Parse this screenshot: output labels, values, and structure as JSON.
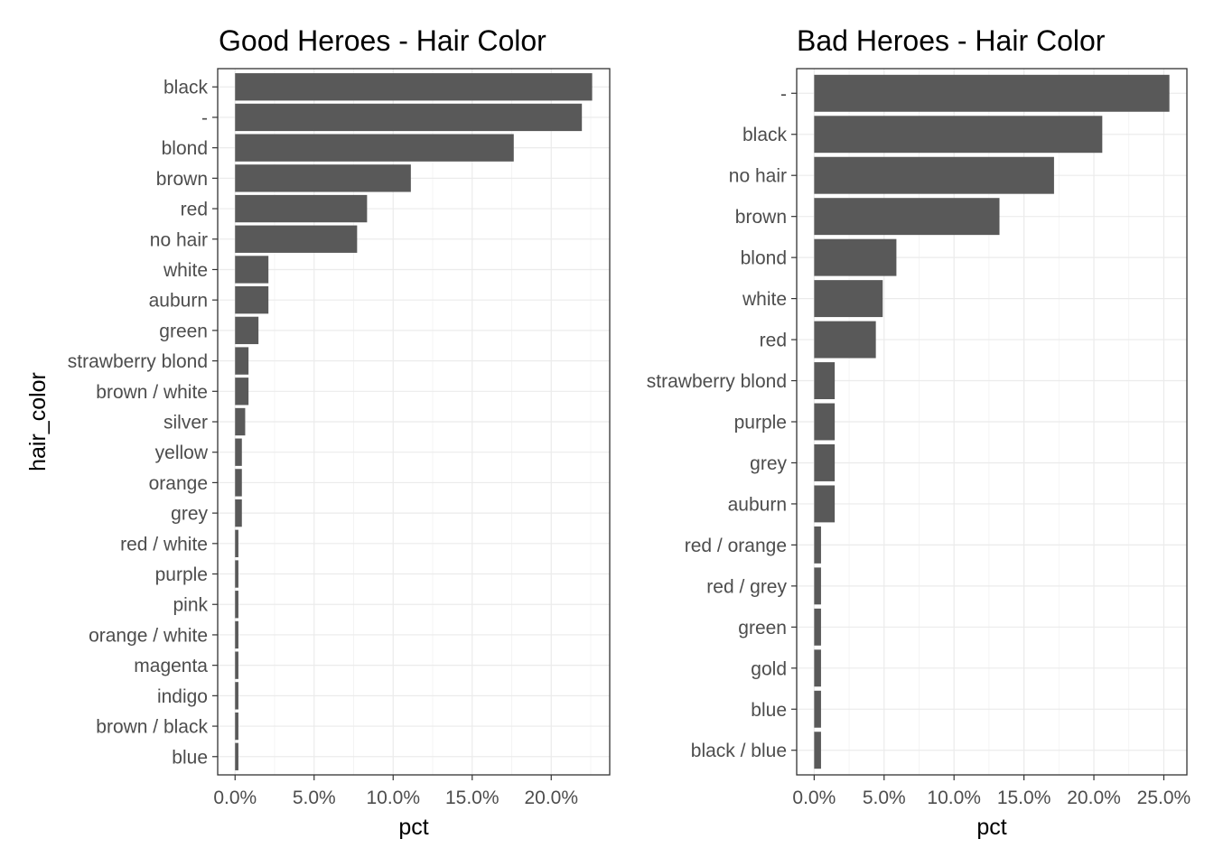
{
  "chart_data": [
    {
      "type": "bar",
      "orientation": "horizontal",
      "title": "Good Heroes - Hair Color",
      "xlabel": "pct",
      "ylabel": "hair_color",
      "xlim": [
        -0.011,
        0.237
      ],
      "xticks": [
        0,
        0.05,
        0.1,
        0.15,
        0.2
      ],
      "xtick_labels": [
        "0.0%",
        "5.0%",
        "10.0%",
        "15.0%",
        "20.0%"
      ],
      "bar_color": "#595959",
      "grid": true,
      "categories": [
        "black",
        "-",
        "blond",
        "brown",
        "red",
        "no hair",
        "white",
        "auburn",
        "green",
        "strawberry blond",
        "brown / white",
        "silver",
        "yellow",
        "orange",
        "grey",
        "red / white",
        "purple",
        "pink",
        "orange / white",
        "magenta",
        "indigo",
        "brown / black",
        "blue"
      ],
      "values": [
        0.2259,
        0.2194,
        0.1763,
        0.1112,
        0.0835,
        0.0772,
        0.0211,
        0.0211,
        0.0148,
        0.0085,
        0.0085,
        0.0064,
        0.0043,
        0.0043,
        0.0043,
        0.0021,
        0.0021,
        0.0021,
        0.0021,
        0.0021,
        0.0021,
        0.0021,
        0.0021
      ]
    },
    {
      "type": "bar",
      "orientation": "horizontal",
      "title": "Bad Heroes - Hair Color",
      "xlabel": "pct",
      "ylabel": "",
      "xlim": [
        -0.0125,
        0.2665
      ],
      "xticks": [
        0,
        0.05,
        0.1,
        0.15,
        0.2,
        0.25
      ],
      "xtick_labels": [
        "0.0%",
        "5.0%",
        "10.0%",
        "15.0%",
        "20.0%",
        "25.0%"
      ],
      "bar_color": "#595959",
      "grid": true,
      "categories": [
        "-",
        "black",
        "no hair",
        "brown",
        "blond",
        "white",
        "red",
        "strawberry blond",
        "purple",
        "grey",
        "auburn",
        "red / orange",
        "red / grey",
        "green",
        "gold",
        "blue",
        "black / blue"
      ],
      "values": [
        0.254,
        0.206,
        0.1715,
        0.1325,
        0.0588,
        0.049,
        0.0441,
        0.0147,
        0.0147,
        0.0147,
        0.0147,
        0.0049,
        0.0049,
        0.0049,
        0.0049,
        0.0049,
        0.0049
      ]
    }
  ]
}
